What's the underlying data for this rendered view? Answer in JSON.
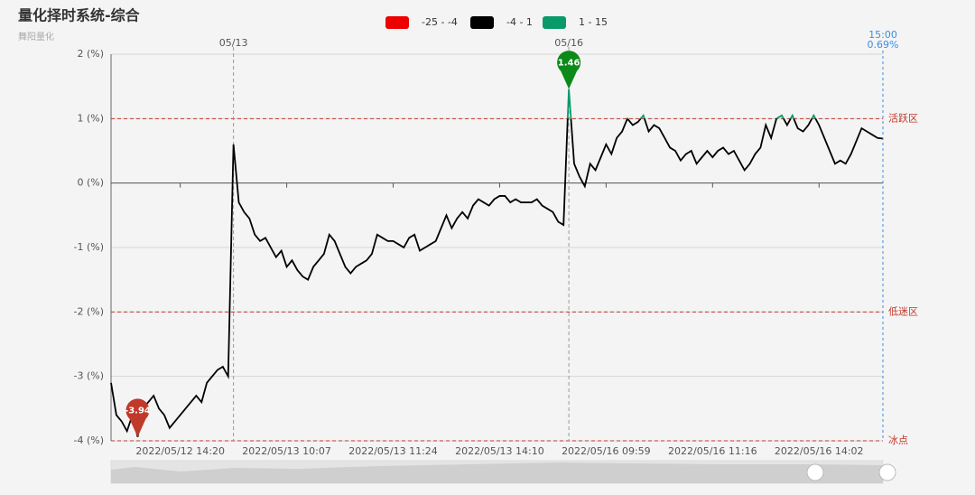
{
  "chart_data": {
    "type": "line",
    "title": "量化择时系统-综合",
    "subtitle": "舞阳量化",
    "categories": [
      null,
      null,
      null,
      null,
      null,
      null,
      null,
      null,
      null,
      null,
      null,
      null,
      null,
      "2022/05/12 14:20",
      null,
      null,
      null,
      null,
      null,
      null,
      null,
      null,
      null,
      null,
      null,
      null,
      null,
      null,
      null,
      null,
      null,
      null,
      null,
      "2022/05/13 10:07",
      null,
      null,
      null,
      null,
      null,
      null,
      null,
      null,
      null,
      null,
      null,
      null,
      null,
      null,
      null,
      null,
      null,
      null,
      null,
      "2022/05/13 11:24",
      null,
      null,
      null,
      null,
      null,
      null,
      null,
      null,
      null,
      null,
      null,
      null,
      null,
      null,
      null,
      null,
      null,
      null,
      null,
      "2022/05/13 14:10",
      null,
      null,
      null,
      null,
      null,
      null,
      null,
      null,
      null,
      null,
      null,
      null,
      null,
      null,
      null,
      null,
      null,
      null,
      null,
      "2022/05/16 09:59",
      null,
      null,
      null,
      null,
      null,
      null,
      null,
      null,
      null,
      null,
      null,
      null,
      null,
      null,
      null,
      null,
      null,
      null,
      null,
      "2022/05/16 11:16",
      null,
      null,
      null,
      null,
      null,
      null,
      null,
      null,
      null,
      null,
      null,
      null,
      null,
      null,
      null,
      null,
      null,
      null,
      null,
      "2022/05/16 14:02",
      null,
      null,
      null,
      null,
      null,
      null,
      null,
      null,
      null,
      null,
      null,
      null
    ],
    "series": [
      {
        "values": [
          -3.1,
          -3.6,
          -3.7,
          -3.85,
          -3.6,
          -3.94,
          -3.5,
          -3.4,
          -3.3,
          -3.5,
          -3.6,
          -3.8,
          -3.7,
          -3.6,
          -3.5,
          -3.4,
          -3.3,
          -3.4,
          -3.1,
          -3.0,
          -2.9,
          -2.85,
          -3.0,
          0.6,
          -0.3,
          -0.45,
          -0.55,
          -0.8,
          -0.9,
          -0.85,
          -1.0,
          -1.15,
          -1.05,
          -1.3,
          -1.2,
          -1.35,
          -1.45,
          -1.5,
          -1.3,
          -1.2,
          -1.1,
          -0.8,
          -0.9,
          -1.1,
          -1.3,
          -1.4,
          -1.3,
          -1.25,
          -1.2,
          -1.1,
          -0.8,
          -0.85,
          -0.9,
          -0.9,
          -0.95,
          -1.0,
          -0.85,
          -0.8,
          -1.05,
          -1.0,
          -0.95,
          -0.9,
          -0.7,
          -0.5,
          -0.7,
          -0.55,
          -0.45,
          -0.55,
          -0.35,
          -0.25,
          -0.3,
          -0.35,
          -0.25,
          -0.2,
          -0.2,
          -0.3,
          -0.25,
          -0.3,
          -0.3,
          -0.3,
          -0.25,
          -0.35,
          -0.4,
          -0.45,
          -0.6,
          -0.65,
          1.46,
          0.3,
          0.1,
          -0.05,
          0.3,
          0.2,
          0.4,
          0.6,
          0.45,
          0.7,
          0.8,
          1.0,
          0.9,
          0.95,
          1.05,
          0.8,
          0.9,
          0.85,
          0.7,
          0.55,
          0.5,
          0.35,
          0.45,
          0.5,
          0.3,
          0.4,
          0.5,
          0.4,
          0.5,
          0.55,
          0.45,
          0.5,
          0.35,
          0.2,
          0.3,
          0.45,
          0.55,
          0.9,
          0.7,
          1.0,
          1.05,
          0.9,
          1.05,
          0.85,
          0.8,
          0.9,
          1.05,
          0.9,
          0.7,
          0.5,
          0.3,
          0.35,
          0.3,
          0.45,
          0.65,
          0.85,
          0.8,
          0.75,
          0.7,
          0.69
        ]
      }
    ],
    "pieces": [
      {
        "min": -25,
        "max": -4,
        "color": "#ee0000",
        "label": "-25 - -4"
      },
      {
        "min": -4,
        "max": 1,
        "color": "#000000",
        "label": "-4 - 1"
      },
      {
        "min": 1,
        "max": 15,
        "color": "#0a9a6a",
        "label": "1 - 15"
      }
    ],
    "ylim": [
      -4,
      2
    ],
    "yticks": [
      {
        "value": -4,
        "label": "-4 (%)"
      },
      {
        "value": -3,
        "label": "-3 (%)"
      },
      {
        "value": -2,
        "label": "-2 (%)"
      },
      {
        "value": -1,
        "label": "-1 (%)"
      },
      {
        "value": 0,
        "label": "0 (%)"
      },
      {
        "value": 1,
        "label": "1 (%)"
      },
      {
        "value": 2,
        "label": "2 (%)"
      }
    ],
    "grid": true,
    "mark_lines": [
      {
        "value": 1,
        "label": "活跃区"
      },
      {
        "value": -2,
        "label": "低迷区"
      },
      {
        "value": -4,
        "label": "冰点"
      }
    ],
    "day_markers": [
      {
        "label": "05/13",
        "index": 23
      },
      {
        "label": "05/16",
        "index": 86
      }
    ],
    "latest_time": "15:00",
    "latest_label": "0.69%",
    "max_color": "#0b8a1a",
    "min_color": "#c0392b"
  }
}
